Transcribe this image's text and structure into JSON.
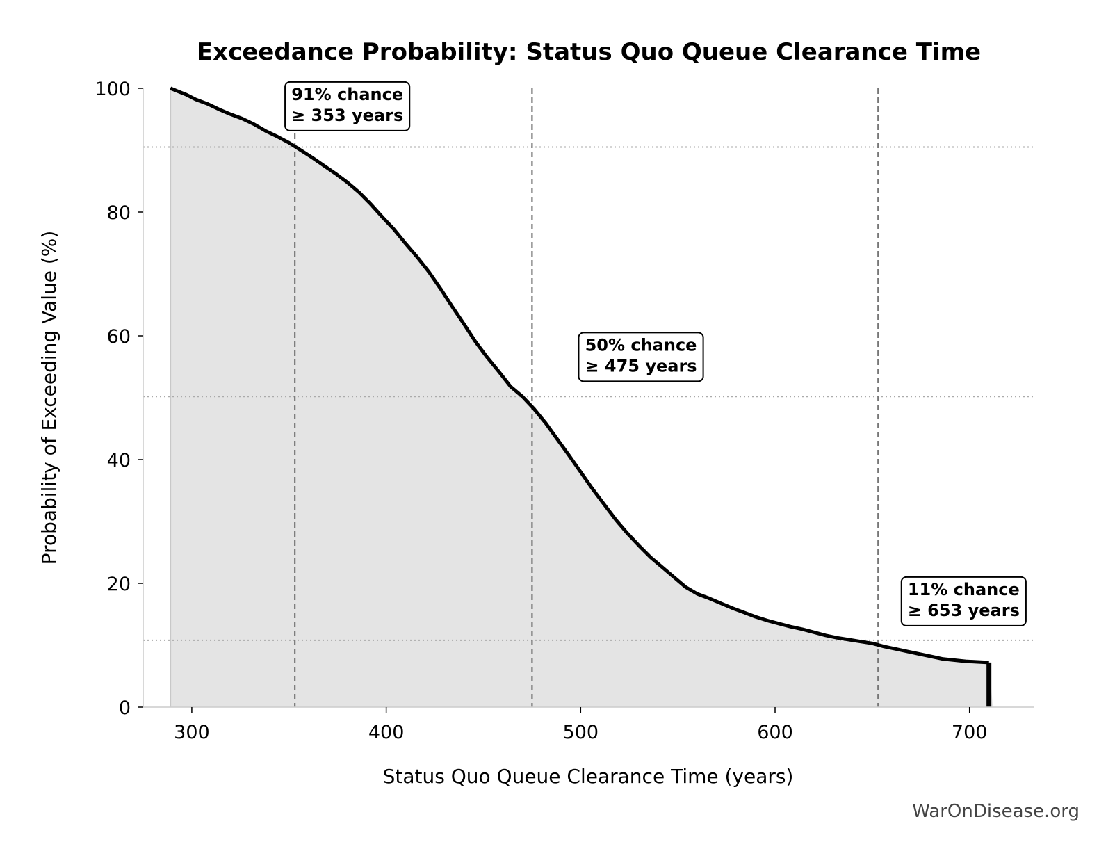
{
  "chart_data": {
    "type": "area",
    "title": "Exceedance Probability: Status Quo Queue Clearance Time",
    "xlabel": "Status Quo Queue Clearance Time (years)",
    "ylabel": "Probability of Exceeding Value (%)",
    "xlim": [
      275,
      733
    ],
    "ylim": [
      0,
      100
    ],
    "xticks": [
      300,
      400,
      500,
      600,
      700
    ],
    "yticks": [
      0,
      20,
      40,
      60,
      80,
      100
    ],
    "grid": false,
    "series": [
      {
        "x": [
          289,
          297,
          302,
          308,
          314,
          320,
          326,
          332,
          338,
          344,
          350,
          356,
          362,
          368,
          374,
          380,
          386,
          392,
          398,
          404,
          410,
          416,
          422,
          428,
          434,
          440,
          446,
          452,
          458,
          464,
          470,
          476,
          482,
          488,
          494,
          500,
          506,
          512,
          518,
          524,
          530,
          536,
          542,
          548,
          554,
          560,
          566,
          572,
          578,
          584,
          590,
          596,
          602,
          608,
          614,
          620,
          626,
          632,
          638,
          644,
          650,
          656,
          662,
          668,
          674,
          680,
          686,
          692,
          698,
          704,
          710,
          712
        ],
        "y": [
          100,
          99,
          98.2,
          97.5,
          96.6,
          95.8,
          95.1,
          94.2,
          93.1,
          92.2,
          91.2,
          90.0,
          88.8,
          87.5,
          86.2,
          84.8,
          83.2,
          81.3,
          79.2,
          77.2,
          74.9,
          72.7,
          70.3,
          67.6,
          64.7,
          61.9,
          59.0,
          56.5,
          54.2,
          51.8,
          50.2,
          48.2,
          45.9,
          43.3,
          40.7,
          38.0,
          35.3,
          32.8,
          30.3,
          28.1,
          26.1,
          24.2,
          22.6,
          21.0,
          19.4,
          18.3,
          17.6,
          16.8,
          16.0,
          15.3,
          14.6,
          14.0,
          13.5,
          13.0,
          12.6,
          12.1,
          11.6,
          11.2,
          10.9,
          10.6,
          10.3,
          9.8,
          9.4,
          9.0,
          8.6,
          8.2,
          7.8,
          7.6,
          7.4,
          7.3,
          7.2,
          0
        ]
      }
    ],
    "percentile_lines": [
      {
        "x": 353,
        "y": 90.5
      },
      {
        "x": 475,
        "y": 50.2
      },
      {
        "x": 653,
        "y": 10.8
      }
    ],
    "annotations": [
      {
        "line1": "91% chance",
        "line2": "≥ 353 years",
        "x": 380,
        "y": 99
      },
      {
        "line1": "50% chance",
        "line2": "≥ 475 years",
        "x": 531,
        "y": 58.5
      },
      {
        "line1": "11% chance",
        "line2": "≥ 653 years",
        "x": 697,
        "y": 19
      }
    ],
    "colors": {
      "line": "#000000",
      "fill": "#e4e4e4",
      "dashed_line": "#777777",
      "dotted_line": "#aaaaaa"
    }
  },
  "watermark": "WarOnDisease.org"
}
